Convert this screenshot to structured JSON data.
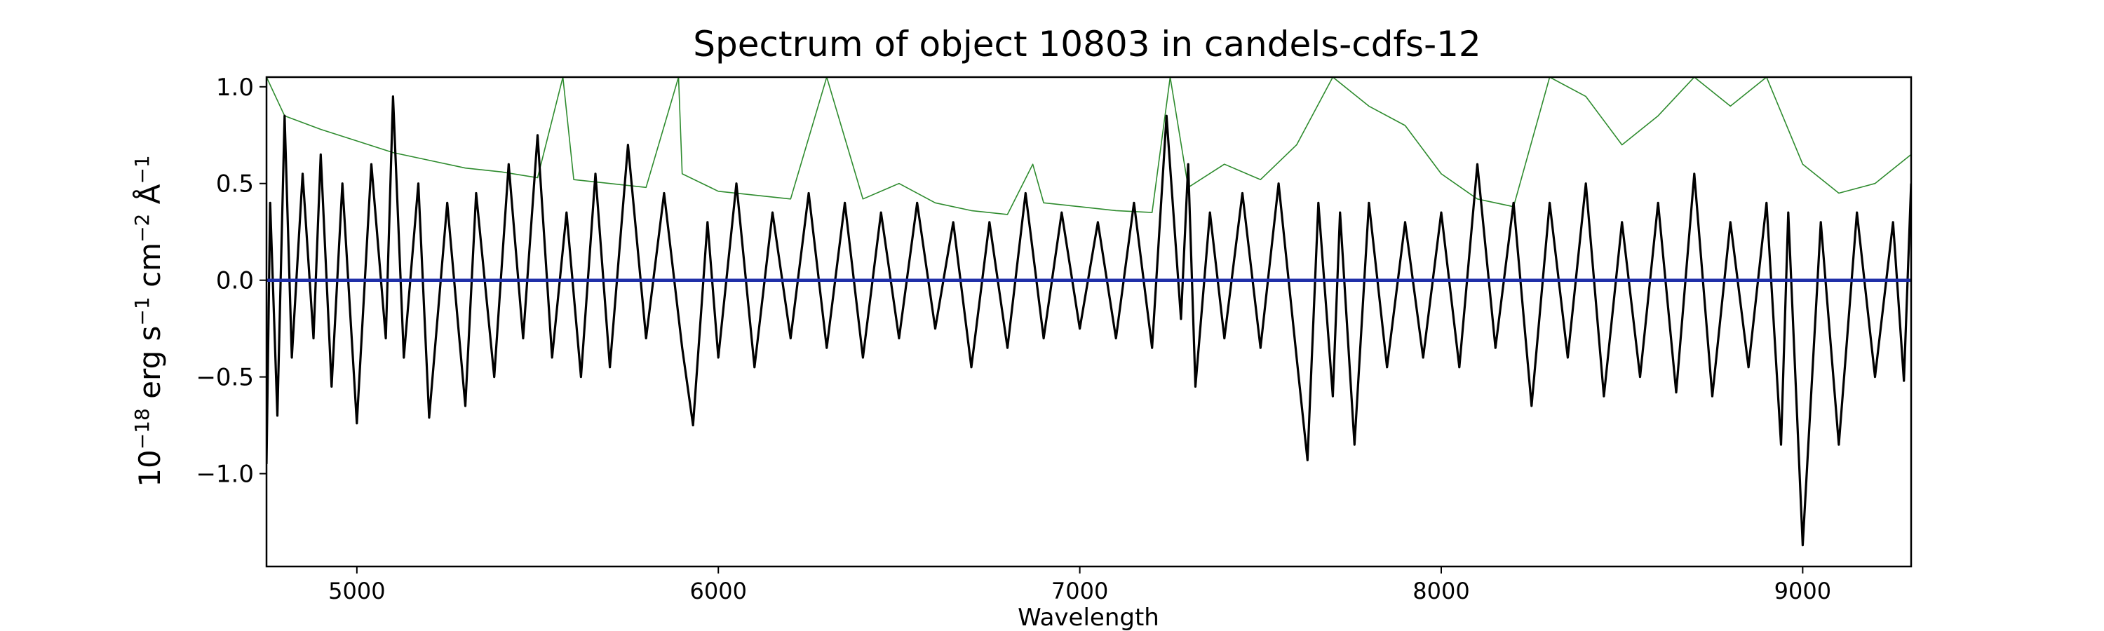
{
  "chart_data": {
    "type": "line",
    "title": "Spectrum of object 10803 in candels-cdfs-12",
    "xlabel": "Wavelength",
    "ylabel": {
      "base": "10",
      "exp_scale": "−18",
      "unit1": " erg s",
      "exp_s": "−1",
      "unit2": " cm",
      "exp_cm": "−2",
      "unit3": " Å",
      "exp_a": "−1"
    },
    "xlim": [
      4750,
      9300
    ],
    "ylim": [
      -1.48,
      1.05
    ],
    "xticks": [
      5000,
      6000,
      7000,
      8000,
      9000
    ],
    "xtick_labels": [
      "5000",
      "6000",
      "7000",
      "8000",
      "9000"
    ],
    "yticks": [
      1.0,
      0.5,
      0.0,
      -0.5,
      -1.0
    ],
    "ytick_labels": [
      "1.0",
      "0.5",
      "0.0",
      "−0.5",
      "−1.0"
    ],
    "grid": false,
    "series": [
      {
        "color": "#2e8b2e",
        "role": "error",
        "x": [
          4750,
          4800,
          4900,
          5000,
          5100,
          5200,
          5300,
          5400,
          5500,
          5570,
          5600,
          5700,
          5800,
          5890,
          5900,
          6000,
          6100,
          6200,
          6300,
          6400,
          6500,
          6600,
          6700,
          6800,
          6870,
          6900,
          7000,
          7100,
          7200,
          7250,
          7300,
          7400,
          7500,
          7600,
          7700,
          7800,
          7900,
          8000,
          8100,
          8200,
          8300,
          8400,
          8500,
          8600,
          8700,
          8800,
          8900,
          9000,
          9100,
          9200,
          9300
        ],
        "y": [
          1.05,
          0.85,
          0.78,
          0.72,
          0.66,
          0.62,
          0.58,
          0.56,
          0.53,
          1.05,
          0.52,
          0.5,
          0.48,
          1.05,
          0.55,
          0.46,
          0.44,
          0.42,
          1.05,
          0.42,
          0.5,
          0.4,
          0.36,
          0.34,
          0.6,
          0.4,
          0.38,
          0.36,
          0.35,
          1.05,
          0.48,
          0.6,
          0.52,
          0.7,
          1.05,
          0.9,
          0.8,
          0.55,
          0.42,
          0.38,
          1.05,
          0.95,
          0.7,
          0.85,
          1.05,
          0.9,
          1.05,
          0.6,
          0.45,
          0.5,
          0.65
        ]
      },
      {
        "color": "#000000",
        "role": "flux",
        "x": [
          4750,
          4760,
          4780,
          4800,
          4820,
          4850,
          4880,
          4900,
          4930,
          4960,
          5000,
          5040,
          5080,
          5100,
          5130,
          5170,
          5200,
          5250,
          5300,
          5330,
          5380,
          5420,
          5460,
          5500,
          5540,
          5580,
          5620,
          5660,
          5700,
          5750,
          5800,
          5850,
          5900,
          5930,
          5970,
          6000,
          6050,
          6100,
          6150,
          6200,
          6250,
          6300,
          6350,
          6400,
          6450,
          6500,
          6550,
          6600,
          6650,
          6700,
          6750,
          6800,
          6850,
          6900,
          6950,
          7000,
          7050,
          7100,
          7150,
          7200,
          7240,
          7280,
          7300,
          7320,
          7360,
          7400,
          7450,
          7500,
          7550,
          7600,
          7630,
          7660,
          7700,
          7720,
          7760,
          7800,
          7850,
          7900,
          7950,
          8000,
          8050,
          8100,
          8150,
          8200,
          8250,
          8300,
          8350,
          8400,
          8450,
          8500,
          8550,
          8600,
          8650,
          8700,
          8750,
          8800,
          8850,
          8900,
          8940,
          8960,
          9000,
          9050,
          9100,
          9150,
          9200,
          9250,
          9280,
          9300
        ],
        "y": [
          -0.95,
          0.4,
          -0.7,
          0.85,
          -0.4,
          0.55,
          -0.3,
          0.65,
          -0.55,
          0.5,
          -0.74,
          0.6,
          -0.3,
          0.95,
          -0.4,
          0.5,
          -0.71,
          0.4,
          -0.65,
          0.45,
          -0.5,
          0.6,
          -0.3,
          0.75,
          -0.4,
          0.35,
          -0.5,
          0.55,
          -0.45,
          0.7,
          -0.3,
          0.45,
          -0.35,
          -0.75,
          0.3,
          -0.4,
          0.5,
          -0.45,
          0.35,
          -0.3,
          0.45,
          -0.35,
          0.4,
          -0.4,
          0.35,
          -0.3,
          0.4,
          -0.25,
          0.3,
          -0.45,
          0.3,
          -0.35,
          0.45,
          -0.3,
          0.35,
          -0.25,
          0.3,
          -0.3,
          0.4,
          -0.35,
          0.85,
          -0.2,
          0.6,
          -0.55,
          0.35,
          -0.3,
          0.45,
          -0.35,
          0.5,
          -0.4,
          -0.93,
          0.4,
          -0.6,
          0.35,
          -0.85,
          0.4,
          -0.45,
          0.3,
          -0.4,
          0.35,
          -0.45,
          0.6,
          -0.35,
          0.4,
          -0.65,
          0.4,
          -0.4,
          0.5,
          -0.6,
          0.3,
          -0.5,
          0.4,
          -0.58,
          0.55,
          -0.6,
          0.3,
          -0.45,
          0.4,
          -0.85,
          0.35,
          -1.37,
          0.3,
          -0.85,
          0.35,
          -0.5,
          0.3,
          -0.52,
          0.5
        ]
      },
      {
        "color": "#1f2fa8",
        "role": "model",
        "x": [
          4750,
          9300
        ],
        "y": [
          0.0,
          0.0
        ]
      }
    ]
  }
}
